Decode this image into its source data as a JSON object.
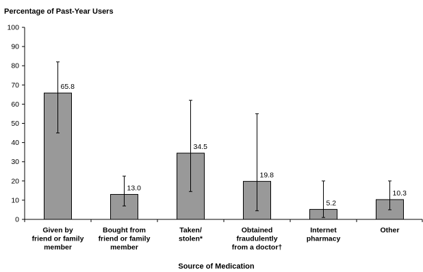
{
  "chart_data": {
    "type": "bar",
    "ylabel": "Percentage of Past-Year Users",
    "xlabel": "Source of Medication",
    "ylim": [
      0,
      100
    ],
    "yticks": [
      0,
      10,
      20,
      30,
      40,
      50,
      60,
      70,
      80,
      90,
      100
    ],
    "grid": false,
    "bar_color": "#999999",
    "categories": [
      "Given by friend or family member",
      "Bought from friend or family member",
      "Taken/ stolen*",
      "Obtained fraudulently from a doctor†",
      "Internet pharmacy",
      "Other"
    ],
    "category_lines": [
      [
        "Given by",
        "friend or family",
        "member"
      ],
      [
        "Bought from",
        "friend or family",
        "member"
      ],
      [
        "Taken/",
        "stolen*"
      ],
      [
        "Obtained",
        "fraudulently",
        "from a doctor†"
      ],
      [
        "Internet",
        "pharmacy"
      ],
      [
        "Other"
      ]
    ],
    "values": [
      65.8,
      13.0,
      34.5,
      19.8,
      5.2,
      10.3
    ],
    "value_labels": [
      "65.8",
      "13.0",
      "34.5",
      "19.8",
      "5.2",
      "10.3"
    ],
    "error_low": [
      45,
      7,
      14.5,
      4.5,
      1,
      5
    ],
    "error_high": [
      82,
      22.5,
      62,
      55,
      20,
      20
    ]
  }
}
